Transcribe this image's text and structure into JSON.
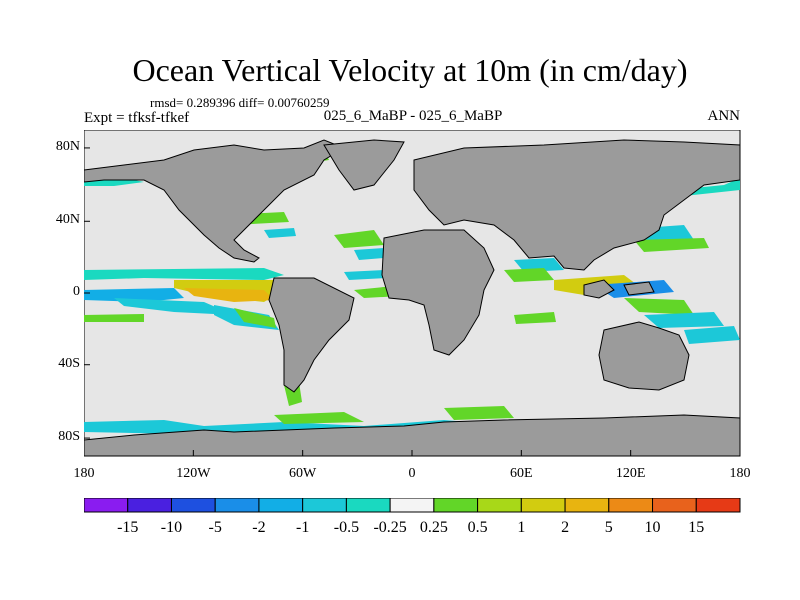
{
  "title": "Ocean Vertical Velocity at 10m (in cm/day)",
  "stats_line": "rmsd= 0.289396 diff= 0.00760259",
  "left_label": "Expt = tfksf-tfkef",
  "center_label": "025_6_MaBP - 025_6_MaBP",
  "right_label": "ANN",
  "map": {
    "ocean_color": "#e6e6e6",
    "land_color": "#9b9b9b",
    "lat_ticks": [
      "80N",
      "40N",
      "0",
      "40S",
      "80S"
    ],
    "lon_ticks": [
      "180",
      "120W",
      "60W",
      "0",
      "60E",
      "120E",
      "180"
    ]
  },
  "colorbar": {
    "colors": [
      "#8a1cf0",
      "#4a20e0",
      "#1e50e0",
      "#1a8ee8",
      "#12aee6",
      "#1cc8d8",
      "#1ad9c0",
      "#f4f4f4",
      "#62d628",
      "#a8d818",
      "#d2cc10",
      "#e8b410",
      "#ec8a16",
      "#e8621c",
      "#e63a16"
    ],
    "labels": [
      "-15",
      "-10",
      "-5",
      "-2",
      "-1",
      "-0.5",
      "-0.25",
      "0.25",
      "0.5",
      "1",
      "2",
      "5",
      "10",
      "15"
    ]
  }
}
